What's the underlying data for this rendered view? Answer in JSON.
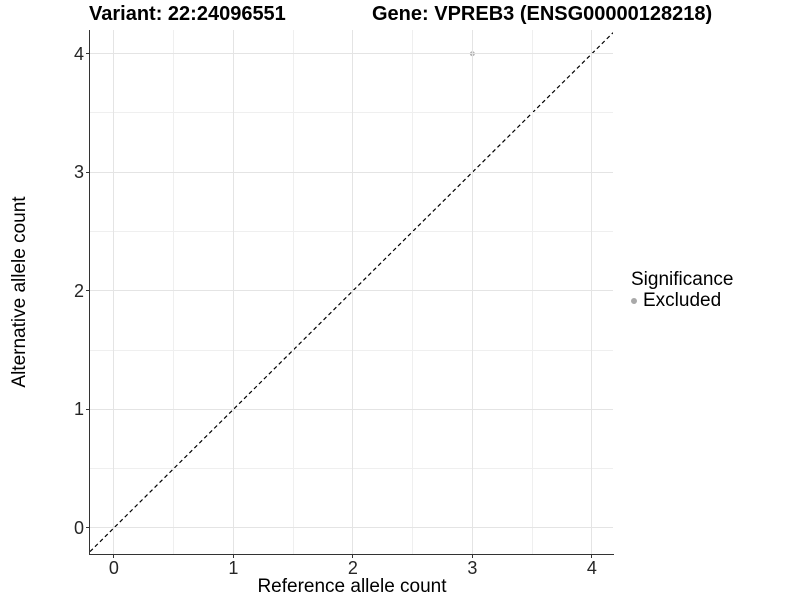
{
  "header": {
    "variant_title": "Variant: 22:24096551",
    "gene_title": "Gene: VPREB3 (ENSG00000128218)"
  },
  "legend": {
    "title": "Significance",
    "items": [
      {
        "label": "Excluded",
        "color": "#a9a9a9"
      }
    ]
  },
  "chart_data": {
    "type": "scatter",
    "titles": [
      "Variant: 22:24096551",
      "Gene: VPREB3 (ENSG00000128218)"
    ],
    "xlabel": "Reference allele count",
    "ylabel": "Alternative allele count",
    "x_ticks": [
      0,
      1,
      2,
      3,
      4
    ],
    "y_ticks": [
      0,
      1,
      2,
      3,
      4
    ],
    "xlim": [
      -0.2,
      4.177
    ],
    "ylim": [
      -0.22,
      4.2
    ],
    "grid": "major and minor gridlines on, white background",
    "legend_position": "right",
    "series": [
      {
        "name": "Excluded",
        "color": "#b3b3b3",
        "points": [
          {
            "x": 3,
            "y": 4
          }
        ]
      }
    ],
    "reference_line": {
      "type": "identity y=x",
      "style": "dashed",
      "color": "#000000"
    }
  },
  "colors": {
    "axis_line": "#333333",
    "grid_major": "#e4e4e4",
    "grid_minor": "#efefef",
    "tick_text": "#262626",
    "point": "#b3b3b3"
  }
}
